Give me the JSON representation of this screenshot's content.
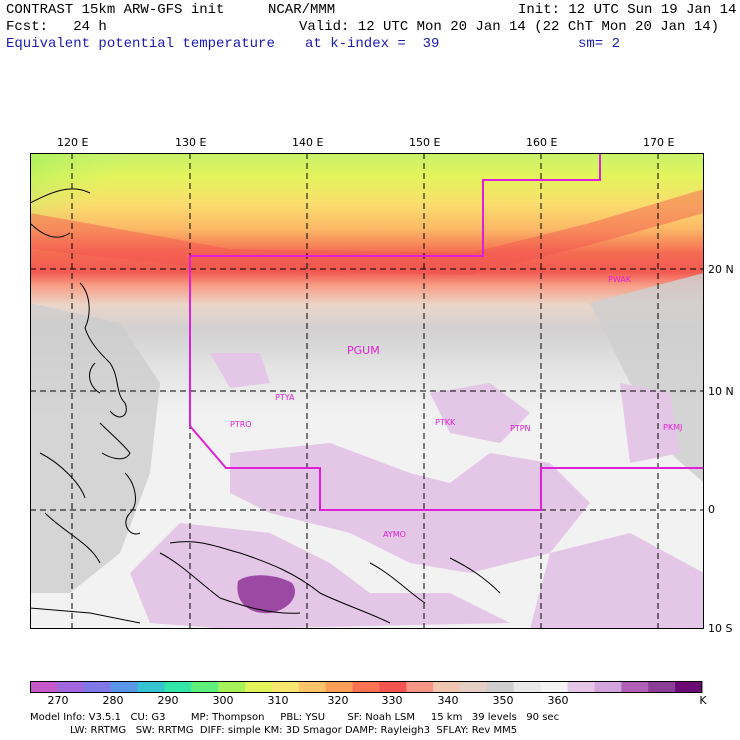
{
  "header": {
    "model": "CONTRAST 15km ARW-GFS init",
    "org": "NCAR/MMM",
    "init": "Init: 12 UTC Sun 19 Jan 14",
    "fcst": "Fcst:   24 h",
    "valid": "Valid: 12 UTC Mon 20 Jan 14 (22 ChT Mon 20 Jan 14)",
    "field": "Equivalent potential temperature",
    "level": "at k-index =  39",
    "smooth": "sm= 2"
  },
  "axes": {
    "lon_labels": [
      "120 E",
      "130 E",
      "140 E",
      "150 E",
      "160 E",
      "170 E"
    ],
    "lat_labels": [
      "20 N",
      "10 N",
      "0",
      "10 S"
    ]
  },
  "stations": [
    {
      "id": "PGUM",
      "name": "PGUM",
      "big": true
    },
    {
      "id": "PWAK",
      "name": "PWAK"
    },
    {
      "id": "PTYA",
      "name": "PTYA"
    },
    {
      "id": "PTRO",
      "name": "PTRO"
    },
    {
      "id": "PTKK",
      "name": "PTKK"
    },
    {
      "id": "PTPN",
      "name": "PTPN"
    },
    {
      "id": "PKMJ",
      "name": "PKMJ"
    },
    {
      "id": "AYMO",
      "name": "AYMO"
    }
  ],
  "colorbar": {
    "labels": [
      "270",
      "280",
      "290",
      "300",
      "310",
      "320",
      "330",
      "340",
      "350",
      "360",
      "K"
    ],
    "colors": [
      "#c659c9",
      "#a167dc",
      "#7f78e6",
      "#5a97e8",
      "#35c4d0",
      "#33e6a8",
      "#5ef07a",
      "#a6f25b",
      "#e2f45a",
      "#f8e870",
      "#fbc468",
      "#fb9f58",
      "#f87254",
      "#f25450",
      "#f69684",
      "#f2c6b0",
      "#e3cfc6",
      "#cfcfcf",
      "#e9e9e9",
      "#f3f3f3",
      "#e6c6e6",
      "#d2a6dc",
      "#b060b6",
      "#8a3e96",
      "#6a0a72"
    ]
  },
  "info": {
    "line1": "Model Info: V3.5.1   CU: G3        MP: Thompson     PBL: YSU       SF: Noah LSM     15 km   39 levels   90 sec",
    "line2": "LW: RRTMG   SW: RRTMG  DIFF: simple KM: 3D Smagor DAMP: Rayleigh3  SFLAY: Rev MM5"
  }
}
